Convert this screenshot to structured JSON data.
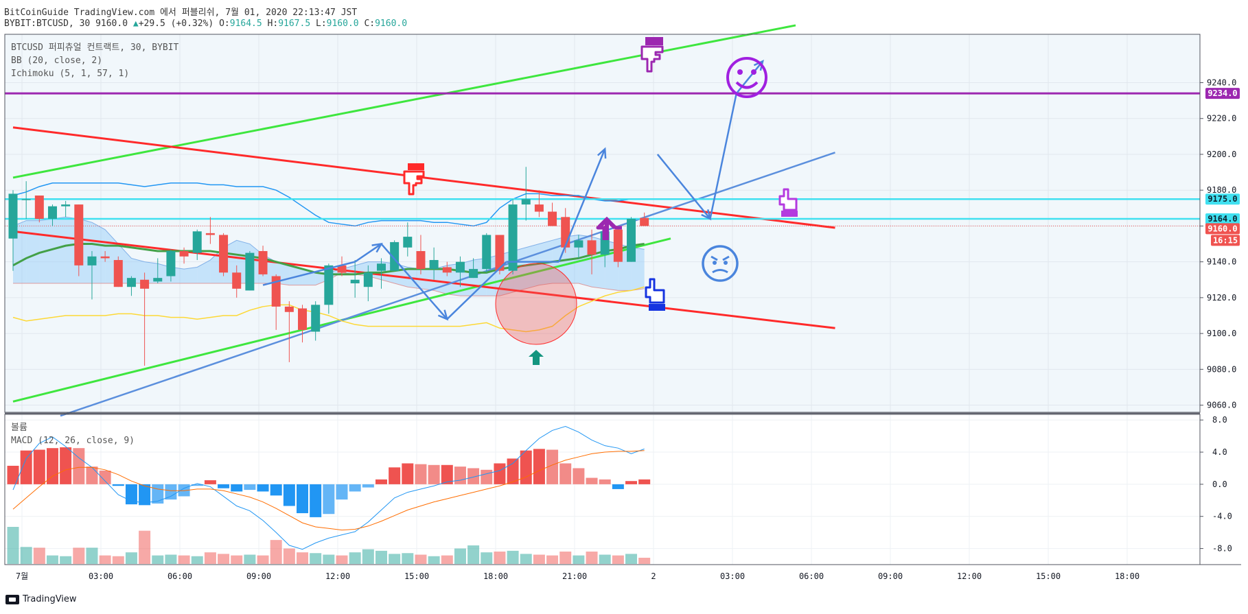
{
  "header": {
    "line1": "BitCoinGuide TradingView.com 에서 퍼블리쉬, 7월 01, 2020 22:13:47 JST",
    "symbol": "BYBIT:BTCUSD, 30",
    "last": "9160.0",
    "arrow": "▲",
    "change": "+29.5 (+0.32%)",
    "o_label": "O:",
    "o": "9164.5",
    "h_label": "H:",
    "h": "9167.5",
    "l_label": "L:",
    "l": "9160.0",
    "c_label": "C:",
    "c": "9160.0"
  },
  "legend": {
    "symbol_line": "BTCUSD 퍼피츄얼 컨트랙트, 30, BYBIT",
    "bb": "BB (20, close, 2)",
    "ichimoku": "Ichimoku (5, 1, 57, 1)",
    "volume": "볼륨",
    "macd": "MACD (12, 26, close, 9)"
  },
  "footer": {
    "logo_text": "TradingView"
  },
  "colors": {
    "up": "#26a69a",
    "down": "#ef5350",
    "bb": "#2196f3",
    "ma": "#43a047",
    "lagging": "#fdd835",
    "red_line": "#ff2a2a",
    "green_line": "#3ee63e",
    "blue_line": "#5b8fdd",
    "purple": "#9c27b0",
    "cyan": "#40e0f0",
    "arrow": "#4a85dd"
  },
  "chart_data": {
    "type": "candlestick",
    "timeframe": "30",
    "y_axis": {
      "ticks": [
        9060,
        9080,
        9100,
        9120,
        9140,
        9160,
        9180,
        9200,
        9220,
        9240
      ],
      "labels": [
        "9060.0",
        "9080.0",
        "9100.0",
        "9120.0",
        "9140.0",
        "9160.0",
        "9180.0",
        "9200.0",
        "9220.0",
        "9240.0"
      ],
      "ylim": [
        9056,
        9267
      ]
    },
    "x_axis": {
      "labels": [
        "7월",
        "03:00",
        "06:00",
        "09:00",
        "12:00",
        "15:00",
        "18:00",
        "21:00",
        "2",
        "03:00",
        "06:00",
        "09:00",
        "12:00",
        "15:00",
        "18:00"
      ]
    },
    "price_badges": [
      {
        "label": "9234.0",
        "value": 9234,
        "color": "#9c27b0"
      },
      {
        "label": "9175.0",
        "value": 9175,
        "color": "#40e0f0"
      },
      {
        "label": "9164.0",
        "value": 9164,
        "color": "#40e0f0"
      },
      {
        "label": "9160.0",
        "value": 9160,
        "color": "#ef5350"
      },
      {
        "label": "16:15",
        "value": null,
        "color": "#ef5350"
      }
    ],
    "candles": [
      {
        "o": 9153,
        "h": 9180,
        "l": 9135,
        "c": 9178
      },
      {
        "o": 9175,
        "h": 9185,
        "l": 9164,
        "c": 9175
      },
      {
        "o": 9177,
        "h": 9177,
        "l": 9162,
        "c": 9164
      },
      {
        "o": 9164,
        "h": 9172,
        "l": 9160,
        "c": 9171
      },
      {
        "o": 9171,
        "h": 9174,
        "l": 9165,
        "c": 9172
      },
      {
        "o": 9172,
        "h": 9172,
        "l": 9132,
        "c": 9138
      },
      {
        "o": 9138,
        "h": 9146,
        "l": 9119,
        "c": 9143
      },
      {
        "o": 9143,
        "h": 9146,
        "l": 9140,
        "c": 9142
      },
      {
        "o": 9141,
        "h": 9143,
        "l": 9126,
        "c": 9126
      },
      {
        "o": 9126,
        "h": 9132,
        "l": 9121,
        "c": 9131
      },
      {
        "o": 9130,
        "h": 9134,
        "l": 9082,
        "c": 9125
      },
      {
        "o": 9129,
        "h": 9142,
        "l": 9128,
        "c": 9131
      },
      {
        "o": 9132,
        "h": 9147,
        "l": 9129,
        "c": 9146
      },
      {
        "o": 9146,
        "h": 9148,
        "l": 9139,
        "c": 9143
      },
      {
        "o": 9145,
        "h": 9158,
        "l": 9141,
        "c": 9157
      },
      {
        "o": 9156,
        "h": 9165,
        "l": 9150,
        "c": 9155
      },
      {
        "o": 9155,
        "h": 9156,
        "l": 9132,
        "c": 9134
      },
      {
        "o": 9134,
        "h": 9138,
        "l": 9120,
        "c": 9125
      },
      {
        "o": 9124,
        "h": 9146,
        "l": 9124,
        "c": 9145
      },
      {
        "o": 9146,
        "h": 9149,
        "l": 9132,
        "c": 9133
      },
      {
        "o": 9132,
        "h": 9133,
        "l": 9102,
        "c": 9115
      },
      {
        "o": 9115,
        "h": 9118,
        "l": 9084,
        "c": 9112
      },
      {
        "o": 9114,
        "h": 9116,
        "l": 9095,
        "c": 9102
      },
      {
        "o": 9101,
        "h": 9118,
        "l": 9096,
        "c": 9116
      },
      {
        "o": 9116,
        "h": 9139,
        "l": 9111,
        "c": 9138
      },
      {
        "o": 9138,
        "h": 9143,
        "l": 9132,
        "c": 9134
      },
      {
        "o": 9128,
        "h": 9141,
        "l": 9120,
        "c": 9130
      },
      {
        "o": 9126,
        "h": 9138,
        "l": 9118,
        "c": 9134
      },
      {
        "o": 9135,
        "h": 9142,
        "l": 9125,
        "c": 9139
      },
      {
        "o": 9135,
        "h": 9152,
        "l": 9135,
        "c": 9151
      },
      {
        "o": 9148,
        "h": 9162,
        "l": 9143,
        "c": 9154
      },
      {
        "o": 9146,
        "h": 9155,
        "l": 9133,
        "c": 9136
      },
      {
        "o": 9136,
        "h": 9148,
        "l": 9130,
        "c": 9141
      },
      {
        "o": 9137,
        "h": 9140,
        "l": 9132,
        "c": 9134
      },
      {
        "o": 9134,
        "h": 9143,
        "l": 9126,
        "c": 9140
      },
      {
        "o": 9131,
        "h": 9142,
        "l": 9131,
        "c": 9136
      },
      {
        "o": 9136,
        "h": 9156,
        "l": 9134,
        "c": 9155
      },
      {
        "o": 9155,
        "h": 9155,
        "l": 9133,
        "c": 9135
      },
      {
        "o": 9135,
        "h": 9175,
        "l": 9133,
        "c": 9172
      },
      {
        "o": 9172,
        "h": 9193,
        "l": 9163,
        "c": 9175
      },
      {
        "o": 9172,
        "h": 9180,
        "l": 9165,
        "c": 9168
      },
      {
        "o": 9168,
        "h": 9173,
        "l": 9160,
        "c": 9160
      },
      {
        "o": 9165,
        "h": 9170,
        "l": 9145,
        "c": 9148
      },
      {
        "o": 9148,
        "h": 9155,
        "l": 9142,
        "c": 9152
      },
      {
        "o": 9152,
        "h": 9158,
        "l": 9133,
        "c": 9144
      },
      {
        "o": 9144,
        "h": 9158,
        "l": 9137,
        "c": 9157
      },
      {
        "o": 9158,
        "h": 9159,
        "l": 9137,
        "c": 9140
      },
      {
        "o": 9140,
        "h": 9165,
        "l": 9140,
        "c": 9164
      },
      {
        "o": 9164.5,
        "h": 9167.5,
        "l": 9160,
        "c": 9160
      }
    ],
    "bb_upper": [
      9177,
      9179,
      9182,
      9184,
      9184,
      9184,
      9184,
      9184,
      9184,
      9183,
      9182,
      9183,
      9184,
      9184,
      9184,
      9183,
      9183,
      9182,
      9182,
      9182,
      9180,
      9176,
      9171,
      9166,
      9162,
      9161,
      9160,
      9162,
      9163,
      9163,
      9163,
      9163,
      9162,
      9162,
      9161,
      9160,
      9162,
      9170,
      9175,
      9178,
      9178,
      9177,
      9177,
      9177,
      9175,
      9174,
      9174,
      9175,
      9175
    ],
    "bb_middle": [
      9138,
      9142,
      9145,
      9147,
      9149,
      9150,
      9150,
      9149,
      9149,
      9148,
      9147,
      9146,
      9146,
      9146,
      9146,
      9146,
      9145,
      9144,
      9143,
      9142,
      9140,
      9138,
      9136,
      9134,
      9133,
      9133,
      9133,
      9134,
      9134,
      9135,
      9136,
      9136,
      9136,
      9136,
      9135,
      9134,
      9134,
      9136,
      9137,
      9138,
      9139,
      9140,
      9141,
      9142,
      9144,
      9146,
      9147,
      9149,
      9150
    ],
    "lagging_span": [
      9109,
      9107,
      9108,
      9109,
      9110,
      9110,
      9110,
      9110,
      9111,
      9111,
      9110,
      9110,
      9109,
      9109,
      9108,
      9109,
      9110,
      9110,
      9113,
      9115,
      9116,
      9116,
      9113,
      9112,
      9110,
      9107,
      9105,
      9104,
      9104,
      9104,
      9104,
      9104,
      9104,
      9104,
      9104,
      9105,
      9106,
      9103,
      9102,
      9101,
      9102,
      9104,
      9110,
      9115,
      9118,
      9121,
      9123,
      9124,
      9126
    ],
    "cloud_a": [
      9160,
      9163,
      9163,
      9164,
      9165,
      9164,
      9162,
      9158,
      9150,
      9142,
      9140,
      9139,
      9137,
      9136,
      9137,
      9141,
      9148,
      9152,
      9150,
      9144,
      9140,
      9138,
      9136,
      9134,
      9134,
      9136,
      9138,
      9140,
      9140,
      9139,
      9137,
      9136,
      9136,
      9138,
      9139,
      9141,
      9142,
      9144,
      9146,
      9148,
      9150,
      9152,
      9154,
      9155,
      9154,
      9152,
      9150,
      9148,
      9147
    ],
    "cloud_b": [
      9128,
      9128,
      9128,
      9128,
      9128,
      9128,
      9128,
      9128,
      9128,
      9128,
      9128,
      9128,
      9128,
      9128,
      9128,
      9128,
      9128,
      9128,
      9128,
      9128,
      9128,
      9127,
      9127,
      9127,
      9130,
      9134,
      9133,
      9132,
      9130,
      9128,
      9126,
      9125,
      9124,
      9122,
      9121,
      9121,
      9121,
      9121,
      9123,
      9125,
      9127,
      9128,
      9128,
      9128,
      9126,
      9125,
      9124,
      9124,
      9125
    ],
    "macd_axis": {
      "ticks": [
        8,
        4,
        0,
        -4,
        -8
      ],
      "labels": [
        "8.0",
        "4.0",
        "0.0",
        "-4.0",
        "-8.0"
      ],
      "ylim": [
        -10,
        8.7
      ]
    },
    "macd_hist": [
      2.3,
      4.2,
      4.3,
      4.5,
      4.6,
      4.5,
      2.2,
      1.7,
      -0.2,
      -2.5,
      -2.6,
      -2.4,
      -1.9,
      -1.5,
      -0.2,
      0.5,
      -0.5,
      -0.9,
      -0.7,
      -0.9,
      -1.4,
      -2.7,
      -3.6,
      -4.1,
      -3.7,
      -1.9,
      -0.9,
      -0.4,
      0.6,
      2.1,
      2.6,
      2.5,
      2.4,
      2.4,
      2.2,
      2.0,
      1.8,
      2.6,
      3.2,
      4.2,
      4.4,
      4.3,
      2.6,
      2.0,
      0.8,
      0.6,
      -0.6,
      0.4,
      0.6
    ],
    "macd_line": [
      -0.7,
      3.2,
      5.1,
      5.9,
      4.7,
      3.3,
      2.1,
      0.4,
      -1.3,
      -2.1,
      -2.3,
      -2.1,
      -1.5,
      -0.5,
      0.1,
      -0.3,
      -1.5,
      -2.7,
      -3.3,
      -4.5,
      -6.0,
      -7.6,
      -8.1,
      -7.3,
      -6.7,
      -6.3,
      -5.9,
      -4.7,
      -3.2,
      -1.7,
      -1.0,
      -0.6,
      -0.2,
      0.3,
      0.5,
      0.9,
      1.3,
      1.7,
      2.6,
      4.2,
      5.7,
      6.7,
      7.2,
      6.5,
      5.5,
      4.8,
      4.5,
      3.8,
      4.4
    ],
    "macd_signal": [
      -3.1,
      -1.7,
      -0.3,
      1.0,
      1.8,
      2.1,
      2.1,
      1.8,
      1.2,
      0.4,
      -0.2,
      -0.6,
      -0.8,
      -0.8,
      -0.6,
      -0.6,
      -0.8,
      -1.2,
      -1.6,
      -2.2,
      -3.0,
      -3.9,
      -4.8,
      -5.3,
      -5.5,
      -5.7,
      -5.6,
      -5.2,
      -4.6,
      -3.9,
      -3.2,
      -2.7,
      -2.2,
      -1.8,
      -1.4,
      -1.0,
      -0.6,
      -0.2,
      0.3,
      0.9,
      1.7,
      2.4,
      3.0,
      3.4,
      3.8,
      4.0,
      4.1,
      4.1,
      4.2
    ],
    "volume": [
      4.8,
      2.2,
      2.1,
      1.1,
      1.0,
      2.1,
      2.1,
      1.1,
      1.0,
      1.5,
      4.3,
      1.1,
      1.2,
      1.1,
      1.0,
      1.5,
      1.3,
      1.1,
      1.2,
      1.1,
      3.1,
      2.0,
      1.5,
      1.4,
      1.2,
      1.1,
      1.5,
      1.9,
      1.7,
      1.3,
      1.4,
      1.2,
      1.0,
      1.1,
      2.0,
      2.4,
      1.5,
      1.6,
      1.7,
      1.3,
      1.2,
      1.1,
      1.6,
      1.1,
      1.6,
      1.2,
      1.1,
      1.3,
      0.8
    ],
    "trend_lines": [
      {
        "name": "green-upper",
        "from": [
          0,
          9187
        ],
        "to": [
          59.5,
          9272
        ]
      },
      {
        "name": "green-lower",
        "from": [
          0,
          9062
        ],
        "to": [
          50,
          9153
        ]
      },
      {
        "name": "red-upper",
        "from": [
          0,
          9215
        ],
        "to": [
          62.5,
          9159
        ]
      },
      {
        "name": "red-lower",
        "from": [
          0,
          9157
        ],
        "to": [
          62.5,
          9103
        ]
      },
      {
        "name": "blue",
        "from": [
          3.6,
          9054
        ],
        "to": [
          62.5,
          9201
        ]
      }
    ],
    "horizontal_lines": [
      {
        "value": 9234,
        "color": "#9c27b0"
      },
      {
        "value": 9175,
        "color": "#40e0f0"
      },
      {
        "value": 9164,
        "color": "#40e0f0"
      }
    ],
    "arrow_path": [
      [
        19,
        9127
      ],
      [
        26,
        9140
      ],
      [
        28,
        9150
      ],
      [
        33,
        9108
      ],
      [
        37.5,
        9140
      ],
      [
        41.5,
        9140
      ],
      [
        45,
        9203
      ],
      [
        49,
        9200
      ],
      [
        53,
        9164
      ],
      [
        55,
        9234
      ],
      [
        57,
        9252
      ]
    ]
  }
}
